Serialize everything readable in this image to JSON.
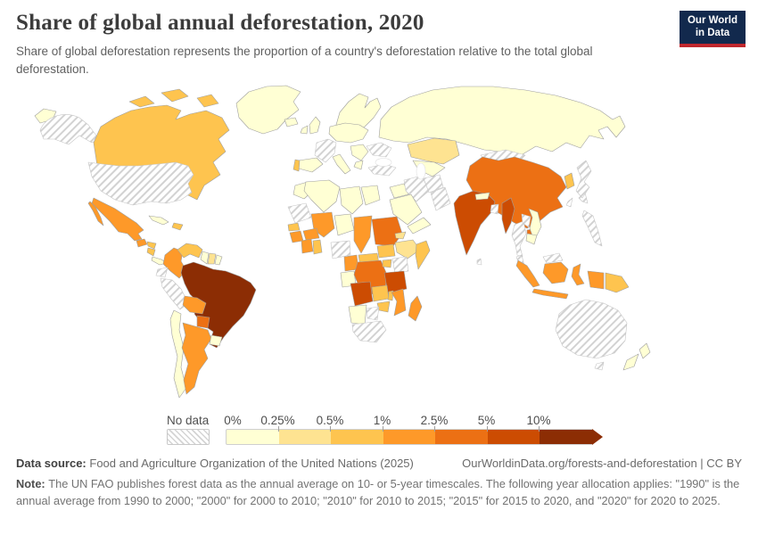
{
  "header": {
    "title": "Share of global annual deforestation, 2020",
    "subtitle": "Share of global deforestation represents the proportion of a country's deforestation relative to the total global deforestation.",
    "logo": {
      "line1": "Our World",
      "line2": "in Data"
    }
  },
  "legend": {
    "no_data_label": "No data",
    "ticks": [
      "0%",
      "0.25%",
      "0.5%",
      "1%",
      "2.5%",
      "5%",
      "10%"
    ],
    "bin_colors": [
      "#ffffd4",
      "#fee391",
      "#fec44f",
      "#fe9929",
      "#ec7014",
      "#cc4c02",
      "#8c2d04"
    ],
    "accent_navy": "#12294d",
    "accent_red": "#c0272d"
  },
  "footer": {
    "source_label": "Data source:",
    "source_value": "Food and Agriculture Organization of the United Nations (2025)",
    "link_text": "OurWorldinData.org/forests-and-deforestation | CC BY",
    "note_label": "Note:",
    "note_text": "The UN FAO publishes forest data as the annual average on 10- or 5-year timescales. The following year allocation applies: \"1990\" is the annual average from 1990 to 2000; \"2000\" for 2000 to 2010; \"2010\" for 2010 to 2015; \"2015\" for 2015 to 2020, and \"2020\" for 2020 to 2025."
  },
  "chart_data": {
    "type": "choropleth_map",
    "title": "Share of global annual deforestation, 2020",
    "unit": "%",
    "bins": [
      "0-0.25%",
      "0.25-0.5%",
      "0.5-1%",
      "1-2.5%",
      "2.5-5%",
      "5-10%",
      ">10%"
    ],
    "legend_position": "bottom",
    "regions": {
      "russia": 0,
      "russia-east-tip": 0,
      "greenland": 0,
      "iceland": 0,
      "canada": 2,
      "alaska": "no-data",
      "usa": "no-data",
      "mexico": 3,
      "guatemala": 3,
      "honduras": 2,
      "nicaragua": 2,
      "costa-rica-panama": 0,
      "cuba": 0,
      "hispaniola": 2,
      "colombia": 3,
      "venezuela": 2,
      "guyana": 0,
      "suriname": 1,
      "french-guiana": 0,
      "ecuador": "no-data",
      "peru": "no-data",
      "brazil": 6,
      "bolivia": 3,
      "paraguay": 4,
      "chile": 0,
      "argentina": 3,
      "uruguay": 0,
      "scandinavia": 0,
      "uk": 0,
      "ireland": 0,
      "france": "no-data",
      "spain": 0,
      "portugal": 2,
      "central-europe": 0,
      "italy": 0,
      "balkans": 0,
      "greece": 0,
      "ukraine": "no-data",
      "turkey": "no-data",
      "morocco": 0,
      "algeria": 0,
      "libya": 0,
      "egypt": 0,
      "mauritania": "no-data",
      "mali": 3,
      "niger": 0,
      "chad": 3,
      "sudan": 4,
      "eritrea": 1,
      "ethiopia": 1,
      "somalia": 2,
      "senegal": 2,
      "guinea": 3,
      "ivory-coast": 3,
      "ghana": 2,
      "burkina-faso": 3,
      "nigeria": "no-data",
      "cameroon": 3,
      "central-african-republic": 2,
      "south-sudan": 2,
      "gabon-congo": 0,
      "drc": 4,
      "uganda": 2,
      "kenya": "no-data",
      "tanzania": 5,
      "angola": 5,
      "zambia": 2,
      "malawi": 2,
      "mozambique": 3,
      "zimbabwe": 2,
      "madagascar": 3,
      "namibia": 0,
      "botswana": "no-data",
      "south-africa": "no-data",
      "iraq": 0,
      "saudi-arabia": 0,
      "yemen-oman": 0,
      "iran": "no-data",
      "afghanistan": "no-data",
      "pakistan": "no-data",
      "kazakhstan": 1,
      "central-asia": 0,
      "mongolia": "no-data",
      "china": 4,
      "india": 5,
      "nepal": 0,
      "bangladesh": "no-data",
      "sri-lanka": "no-data",
      "myanmar": 5,
      "thailand": "no-data",
      "laos": "no-data",
      "vietnam": 0,
      "cambodia": 0,
      "malaysia": "no-data",
      "borneo-malaysia": "no-data",
      "indonesia-sumatra": 3,
      "indonesia-java": 3,
      "indonesia-borneo": 3,
      "indonesia-sulawesi": 3,
      "indonesia-papua": 3,
      "papua-new-guinea": 2,
      "philippines": "no-data",
      "taiwan": "no-data",
      "korea": 2,
      "japan": "no-data",
      "australia": "no-data",
      "tasmania": "no-data",
      "new-zealand": 0
    }
  }
}
